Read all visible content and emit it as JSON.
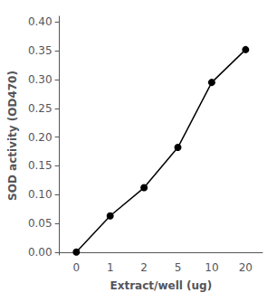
{
  "chart_data": {
    "type": "line",
    "xlabel": "Extract/well (ug)",
    "ylabel": "SOD activity (OD470)",
    "categories": [
      "0",
      "1",
      "2",
      "5",
      "10",
      "20"
    ],
    "values": [
      0.0,
      0.063,
      0.112,
      0.182,
      0.295,
      0.352
    ],
    "color": "black",
    "marker": "circle",
    "line_style": "solid",
    "ylim": [
      -0.005,
      0.41
    ],
    "yticks": [
      {
        "value": 0,
        "label": "0.00"
      },
      {
        "value": 0.05,
        "label": "0.05"
      },
      {
        "value": 0.1,
        "label": "0.10"
      },
      {
        "value": 0.15,
        "label": "0.15"
      },
      {
        "value": 0.2,
        "label": "0.20"
      },
      {
        "value": 0.25,
        "label": "0.25"
      },
      {
        "value": 0.3,
        "label": "0.30"
      },
      {
        "value": 0.35,
        "label": "0.35"
      },
      {
        "value": 0.4,
        "label": "0.40"
      }
    ],
    "grid": false
  }
}
